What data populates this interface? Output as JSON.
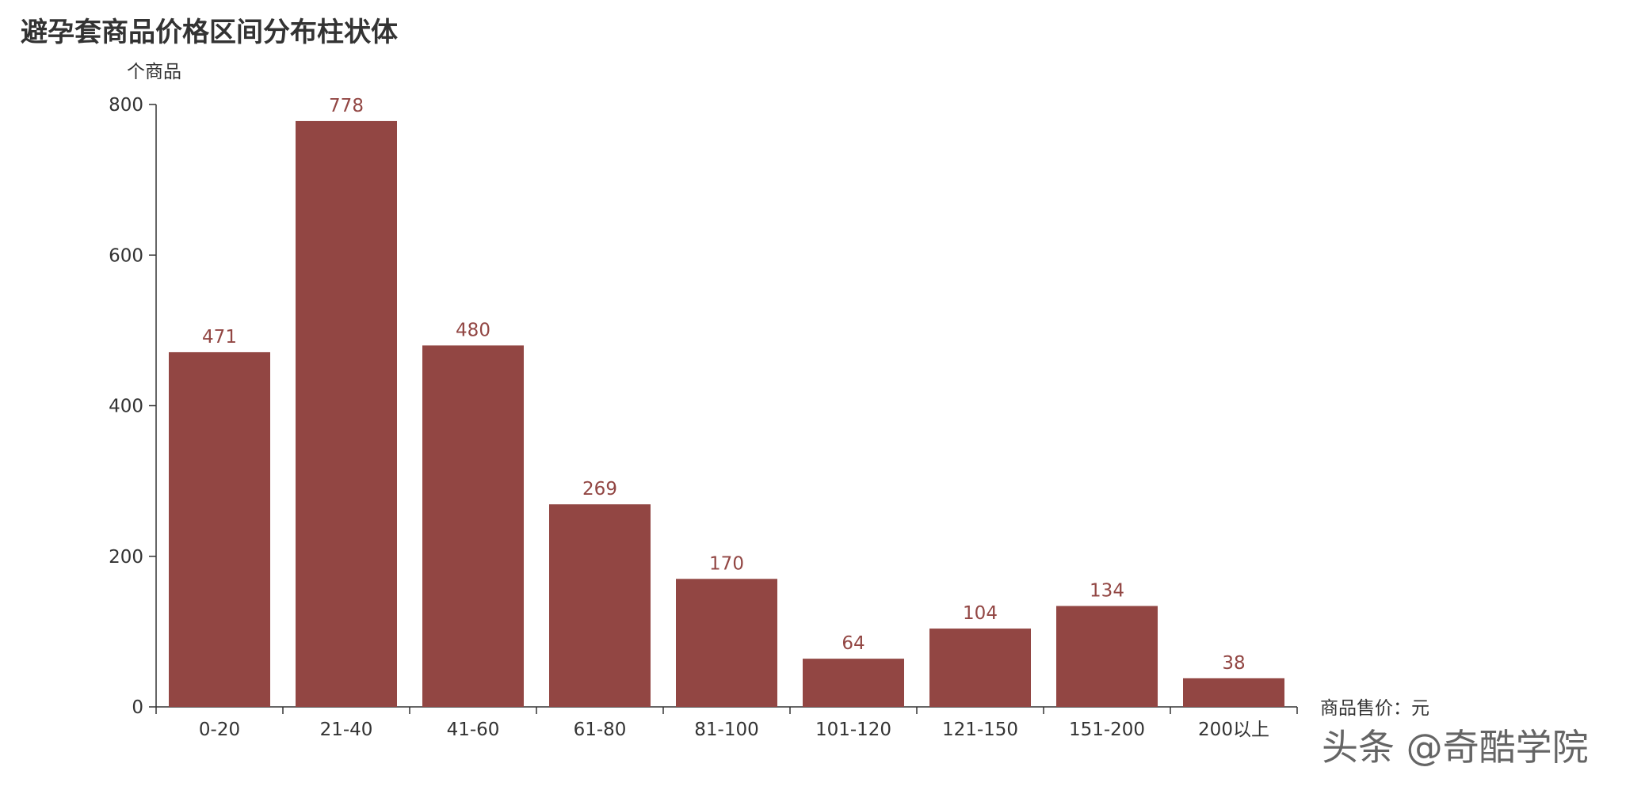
{
  "chart_data": {
    "type": "bar",
    "title": "避孕套商品价格区间分布柱状体",
    "ylabel": "个商品",
    "xlabel": "商品售价：元",
    "categories": [
      "0-20",
      "21-40",
      "41-60",
      "61-80",
      "81-100",
      "101-120",
      "121-150",
      "151-200",
      "200以上"
    ],
    "values": [
      471,
      778,
      480,
      269,
      170,
      64,
      104,
      134,
      38
    ],
    "ylim": [
      0,
      800
    ],
    "yticks": [
      0,
      200,
      400,
      600,
      800
    ],
    "grid": false,
    "bar_color": "#924643",
    "label_color": "#924643",
    "axis_color": "#333333"
  },
  "watermark": "头条 @奇酷学院"
}
